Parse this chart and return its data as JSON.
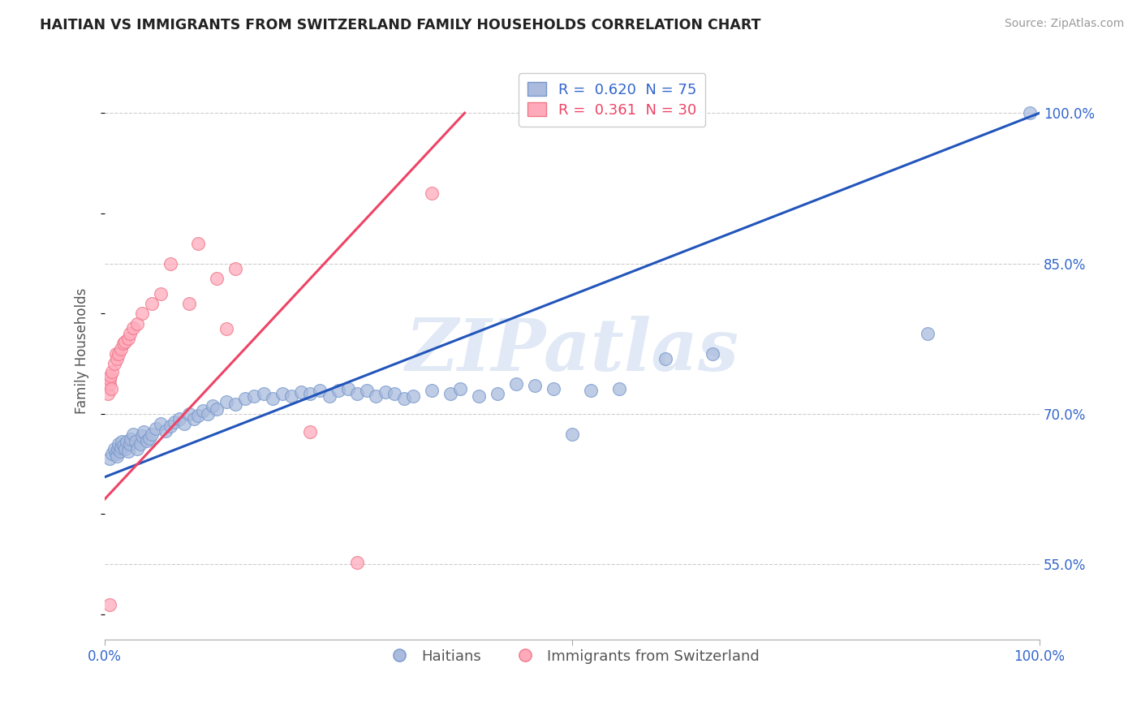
{
  "title": "HAITIAN VS IMMIGRANTS FROM SWITZERLAND FAMILY HOUSEHOLDS CORRELATION CHART",
  "source": "Source: ZipAtlas.com",
  "ylabel": "Family Households",
  "blue_label": "Haitians",
  "pink_label": "Immigrants from Switzerland",
  "blue_R": 0.62,
  "blue_N": 75,
  "pink_R": 0.361,
  "pink_N": 30,
  "blue_color": "#AABBDD",
  "pink_color": "#FFAABB",
  "blue_edge": "#7799CC",
  "pink_edge": "#EE7788",
  "line_blue": "#2255BB",
  "line_pink": "#EE4466",
  "watermark_text": "ZIPatlas",
  "xlim": [
    0.0,
    1.0
  ],
  "ylim": [
    0.475,
    1.05
  ],
  "yticks": [
    0.55,
    0.7,
    0.85,
    1.0
  ],
  "ytick_labels": [
    "55.0%",
    "70.0%",
    "85.0%",
    "100.0%"
  ],
  "xtick_labels": [
    "0.0%",
    "",
    "100.0%"
  ],
  "blue_line_x": [
    0.0,
    1.0
  ],
  "blue_line_y": [
    0.637,
    1.0
  ],
  "pink_line_x": [
    0.0,
    0.385
  ],
  "pink_line_y": [
    0.615,
    1.0
  ],
  "blue_x": [
    0.005,
    0.008,
    0.01,
    0.012,
    0.013,
    0.014,
    0.015,
    0.016,
    0.017,
    0.018,
    0.02,
    0.022,
    0.023,
    0.025,
    0.027,
    0.028,
    0.03,
    0.033,
    0.035,
    0.038,
    0.04,
    0.042,
    0.045,
    0.048,
    0.05,
    0.055,
    0.06,
    0.065,
    0.07,
    0.075,
    0.08,
    0.085,
    0.09,
    0.095,
    0.1,
    0.105,
    0.11,
    0.115,
    0.12,
    0.13,
    0.14,
    0.15,
    0.16,
    0.17,
    0.18,
    0.19,
    0.2,
    0.21,
    0.22,
    0.23,
    0.24,
    0.25,
    0.26,
    0.27,
    0.28,
    0.29,
    0.3,
    0.31,
    0.32,
    0.33,
    0.35,
    0.37,
    0.38,
    0.4,
    0.42,
    0.44,
    0.46,
    0.48,
    0.5,
    0.52,
    0.55,
    0.6,
    0.65,
    0.88,
    0.99
  ],
  "blue_y": [
    0.655,
    0.66,
    0.665,
    0.66,
    0.658,
    0.665,
    0.67,
    0.663,
    0.667,
    0.672,
    0.668,
    0.665,
    0.672,
    0.663,
    0.67,
    0.675,
    0.68,
    0.672,
    0.665,
    0.67,
    0.678,
    0.682,
    0.673,
    0.676,
    0.68,
    0.685,
    0.69,
    0.683,
    0.688,
    0.692,
    0.695,
    0.69,
    0.7,
    0.695,
    0.698,
    0.703,
    0.7,
    0.708,
    0.705,
    0.712,
    0.71,
    0.715,
    0.718,
    0.72,
    0.715,
    0.72,
    0.718,
    0.722,
    0.72,
    0.723,
    0.718,
    0.723,
    0.725,
    0.72,
    0.723,
    0.718,
    0.722,
    0.72,
    0.715,
    0.718,
    0.723,
    0.72,
    0.725,
    0.718,
    0.72,
    0.73,
    0.728,
    0.725,
    0.68,
    0.723,
    0.725,
    0.755,
    0.76,
    0.78,
    1.0
  ],
  "pink_x": [
    0.003,
    0.005,
    0.005,
    0.006,
    0.007,
    0.008,
    0.01,
    0.012,
    0.013,
    0.015,
    0.017,
    0.02,
    0.022,
    0.025,
    0.027,
    0.03,
    0.035,
    0.04,
    0.05,
    0.06,
    0.07,
    0.09,
    0.1,
    0.12,
    0.13,
    0.14,
    0.22,
    0.27,
    0.005,
    0.35
  ],
  "pink_y": [
    0.72,
    0.73,
    0.735,
    0.738,
    0.725,
    0.742,
    0.75,
    0.76,
    0.755,
    0.76,
    0.765,
    0.77,
    0.772,
    0.775,
    0.78,
    0.786,
    0.79,
    0.8,
    0.81,
    0.82,
    0.85,
    0.81,
    0.87,
    0.835,
    0.785,
    0.845,
    0.682,
    0.552,
    0.51,
    0.92
  ]
}
